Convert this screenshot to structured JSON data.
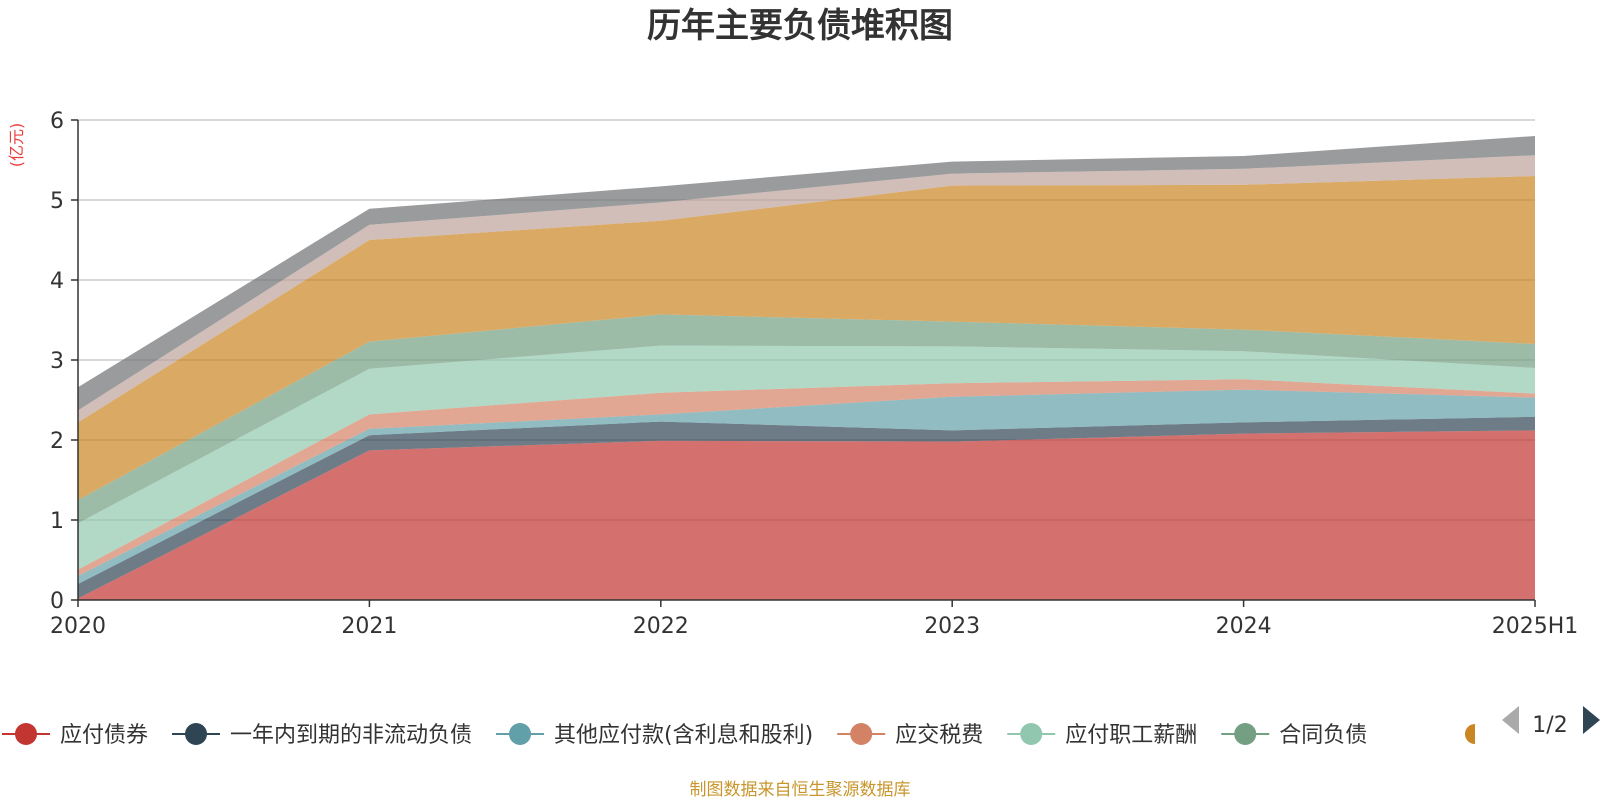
{
  "chart_data": {
    "type": "area",
    "stacked": true,
    "title": "历年主要负债堆积图",
    "unit_label": "(亿元)",
    "x": [
      "2020",
      "2021",
      "2022",
      "2023",
      "2024",
      "2025H1"
    ],
    "ylim": [
      0,
      6
    ],
    "yticks": [
      "0",
      "1",
      "2",
      "3",
      "4",
      "5",
      "6"
    ],
    "grid": true,
    "series": [
      {
        "name": "应付债券",
        "color": "#c23531",
        "values": [
          0.02,
          1.87,
          1.99,
          1.98,
          2.08,
          2.12
        ]
      },
      {
        "name": "一年内到期的非流动负债",
        "color": "#2f4554",
        "values": [
          0.18,
          0.19,
          0.24,
          0.14,
          0.14,
          0.17
        ]
      },
      {
        "name": "其他应付款(含利息和股利)",
        "color": "#61a0a8",
        "values": [
          0.1,
          0.08,
          0.09,
          0.42,
          0.41,
          0.24
        ]
      },
      {
        "name": "应交税费",
        "color": "#d48265",
        "values": [
          0.08,
          0.18,
          0.27,
          0.17,
          0.13,
          0.05
        ]
      },
      {
        "name": "应付职工薪酬",
        "color": "#91c7ae",
        "values": [
          0.58,
          0.57,
          0.59,
          0.46,
          0.35,
          0.32
        ]
      },
      {
        "name": "合同负债",
        "color": "#749f83",
        "values": [
          0.29,
          0.34,
          0.39,
          0.31,
          0.27,
          0.3
        ]
      },
      {
        "name": "",
        "color": "#ca8622",
        "values": [
          0.97,
          1.27,
          1.17,
          1.7,
          1.81,
          2.1
        ]
      },
      {
        "name": "",
        "color": "#bda29a",
        "values": [
          0.15,
          0.19,
          0.23,
          0.15,
          0.2,
          0.26
        ]
      },
      {
        "name": "",
        "color": "#6e7074",
        "values": [
          0.29,
          0.2,
          0.2,
          0.15,
          0.16,
          0.24
        ]
      }
    ]
  },
  "legend": {
    "page_indicator": "1/2",
    "prev_icon": "triangle-left-icon",
    "next_icon": "triangle-right-icon"
  },
  "source_note": "制图数据来自恒生聚源数据库",
  "colors": {
    "title": "#333333",
    "unit": "#e83e3e",
    "source": "#c8962c",
    "axis": "#333333",
    "grid": "#cccccc",
    "pager_inactive": "#aaaaaa",
    "pager_active": "#2f4554"
  }
}
